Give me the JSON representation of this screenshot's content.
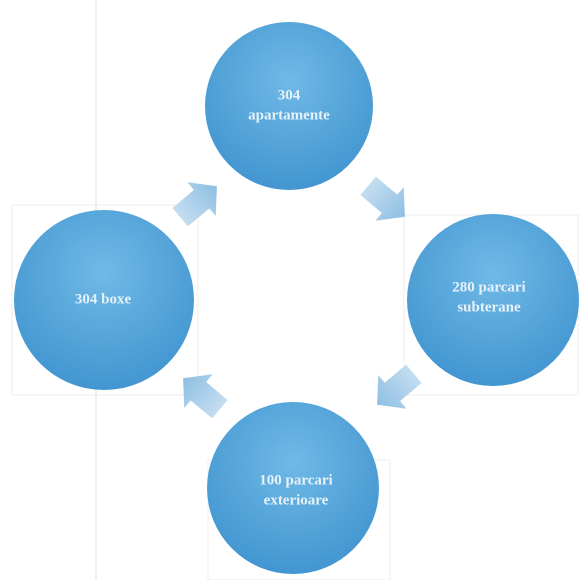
{
  "nodes": [
    {
      "lines": [
        "304",
        "apartamente"
      ]
    },
    {
      "lines": [
        "280 parcari",
        "subterane"
      ]
    },
    {
      "lines": [
        "100 parcari",
        "exterioare"
      ]
    },
    {
      "lines": [
        "304 boxe"
      ]
    }
  ]
}
